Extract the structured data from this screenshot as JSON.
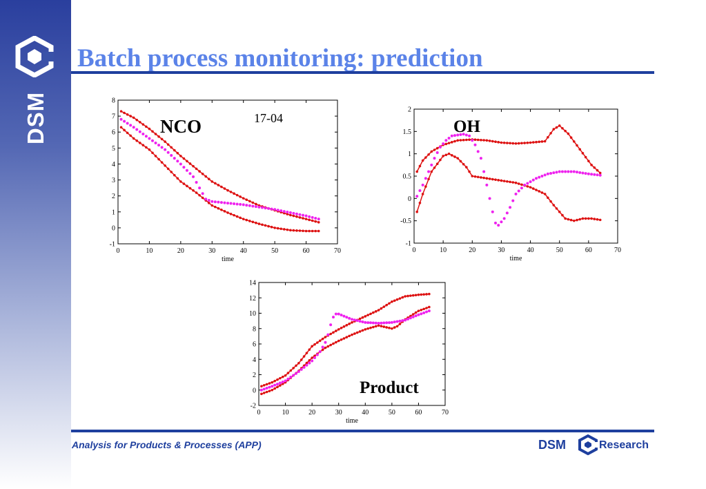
{
  "slide": {
    "title": "Batch process monitoring: prediction",
    "sidebar_logo_text": "DSM",
    "footer_text": "Analysis for Products & Processes (APP)",
    "footer_brand": "DSM",
    "footer_research": "Research",
    "colors": {
      "brand_blue": "#1e3f9e",
      "title_blue": "#5b83e8",
      "limit_red": "#dd1111",
      "prediction_magenta": "#ee22ee"
    }
  },
  "chart_data": [
    {
      "type": "scatter",
      "label": "NCO",
      "annotation": "17-04",
      "xlabel": "time",
      "ylabel": "",
      "xlim": [
        0,
        70
      ],
      "ylim": [
        -1,
        8
      ],
      "xticks": [
        0,
        10,
        20,
        30,
        40,
        50,
        60,
        70
      ],
      "yticks": [
        -1,
        0,
        1,
        2,
        3,
        4,
        5,
        6,
        7,
        8
      ],
      "series": [
        {
          "role": "upper-limit",
          "color": "#dd1111",
          "markers": "line-dot",
          "points": [
            [
              1,
              7.3
            ],
            [
              5,
              6.9
            ],
            [
              10,
              6.2
            ],
            [
              15,
              5.4
            ],
            [
              20,
              4.5
            ],
            [
              25,
              3.7
            ],
            [
              30,
              2.9
            ],
            [
              35,
              2.35
            ],
            [
              40,
              1.85
            ],
            [
              45,
              1.4
            ],
            [
              50,
              1.1
            ],
            [
              55,
              0.8
            ],
            [
              60,
              0.55
            ],
            [
              64,
              0.35
            ]
          ]
        },
        {
          "role": "lower-limit",
          "color": "#dd1111",
          "markers": "line-dot",
          "points": [
            [
              1,
              6.3
            ],
            [
              5,
              5.6
            ],
            [
              10,
              4.9
            ],
            [
              15,
              3.9
            ],
            [
              20,
              2.9
            ],
            [
              25,
              2.2
            ],
            [
              30,
              1.4
            ],
            [
              35,
              0.95
            ],
            [
              40,
              0.55
            ],
            [
              45,
              0.25
            ],
            [
              50,
              0.0
            ],
            [
              55,
              -0.15
            ],
            [
              60,
              -0.2
            ],
            [
              64,
              -0.2
            ]
          ]
        },
        {
          "role": "prediction",
          "color": "#ee22ee",
          "markers": "dots",
          "points": [
            [
              1,
              6.8
            ],
            [
              5,
              6.3
            ],
            [
              10,
              5.6
            ],
            [
              15,
              4.9
            ],
            [
              20,
              4.0
            ],
            [
              24,
              3.2
            ],
            [
              26,
              2.5
            ],
            [
              28,
              1.8
            ],
            [
              30,
              1.65
            ],
            [
              35,
              1.55
            ],
            [
              40,
              1.45
            ],
            [
              45,
              1.3
            ],
            [
              50,
              1.15
            ],
            [
              55,
              0.95
            ],
            [
              60,
              0.75
            ],
            [
              64,
              0.55
            ]
          ]
        }
      ]
    },
    {
      "type": "scatter",
      "label": "OH",
      "xlabel": "time",
      "ylabel": "",
      "xlim": [
        0,
        70
      ],
      "ylim": [
        -1,
        2
      ],
      "xticks": [
        0,
        10,
        20,
        30,
        40,
        50,
        60,
        70
      ],
      "yticks": [
        -1,
        -0.5,
        0,
        0.5,
        1,
        1.5,
        2
      ],
      "series": [
        {
          "role": "upper-limit",
          "color": "#dd1111",
          "markers": "line-dot",
          "points": [
            [
              1,
              0.6
            ],
            [
              3,
              0.85
            ],
            [
              6,
              1.05
            ],
            [
              10,
              1.2
            ],
            [
              15,
              1.3
            ],
            [
              20,
              1.32
            ],
            [
              25,
              1.3
            ],
            [
              30,
              1.25
            ],
            [
              35,
              1.23
            ],
            [
              40,
              1.25
            ],
            [
              45,
              1.28
            ],
            [
              48,
              1.55
            ],
            [
              50,
              1.63
            ],
            [
              53,
              1.45
            ],
            [
              57,
              1.1
            ],
            [
              61,
              0.75
            ],
            [
              64,
              0.57
            ]
          ]
        },
        {
          "role": "lower-limit",
          "color": "#dd1111",
          "markers": "line-dot",
          "points": [
            [
              1,
              -0.3
            ],
            [
              3,
              0.1
            ],
            [
              6,
              0.6
            ],
            [
              10,
              0.95
            ],
            [
              12,
              1.0
            ],
            [
              15,
              0.9
            ],
            [
              18,
              0.7
            ],
            [
              20,
              0.5
            ],
            [
              25,
              0.45
            ],
            [
              30,
              0.4
            ],
            [
              35,
              0.35
            ],
            [
              40,
              0.25
            ],
            [
              45,
              0.1
            ],
            [
              48,
              -0.15
            ],
            [
              52,
              -0.45
            ],
            [
              55,
              -0.5
            ],
            [
              58,
              -0.45
            ],
            [
              61,
              -0.45
            ],
            [
              64,
              -0.48
            ]
          ]
        },
        {
          "role": "prediction",
          "color": "#ee22ee",
          "markers": "dots",
          "points": [
            [
              1,
              0.05
            ],
            [
              3,
              0.3
            ],
            [
              5,
              0.6
            ],
            [
              7,
              0.9
            ],
            [
              9,
              1.15
            ],
            [
              11,
              1.3
            ],
            [
              13,
              1.4
            ],
            [
              15,
              1.42
            ],
            [
              17,
              1.44
            ],
            [
              19,
              1.4
            ],
            [
              21,
              1.2
            ],
            [
              23,
              0.9
            ],
            [
              25,
              0.3
            ],
            [
              27,
              -0.3
            ],
            [
              28,
              -0.55
            ],
            [
              29,
              -0.6
            ],
            [
              31,
              -0.45
            ],
            [
              33,
              -0.2
            ],
            [
              35,
              0.1
            ],
            [
              38,
              0.3
            ],
            [
              42,
              0.45
            ],
            [
              46,
              0.55
            ],
            [
              50,
              0.6
            ],
            [
              55,
              0.6
            ],
            [
              60,
              0.55
            ],
            [
              64,
              0.52
            ]
          ]
        }
      ]
    },
    {
      "type": "scatter",
      "label": "Product",
      "xlabel": "time",
      "ylabel": "",
      "xlim": [
        0,
        70
      ],
      "ylim": [
        -2,
        14
      ],
      "xticks": [
        0,
        10,
        20,
        30,
        40,
        50,
        60,
        70
      ],
      "yticks": [
        -2,
        0,
        2,
        4,
        6,
        8,
        10,
        12,
        14
      ],
      "series": [
        {
          "role": "upper-limit",
          "color": "#dd1111",
          "markers": "line-dot",
          "points": [
            [
              1,
              0.5
            ],
            [
              5,
              1.0
            ],
            [
              10,
              1.9
            ],
            [
              15,
              3.5
            ],
            [
              20,
              5.7
            ],
            [
              25,
              6.9
            ],
            [
              30,
              7.9
            ],
            [
              35,
              8.8
            ],
            [
              40,
              9.6
            ],
            [
              45,
              10.4
            ],
            [
              50,
              11.5
            ],
            [
              55,
              12.2
            ],
            [
              60,
              12.4
            ],
            [
              64,
              12.5
            ]
          ]
        },
        {
          "role": "lower-limit",
          "color": "#dd1111",
          "markers": "line-dot",
          "points": [
            [
              1,
              -0.5
            ],
            [
              5,
              0.0
            ],
            [
              10,
              1.0
            ],
            [
              15,
              2.5
            ],
            [
              20,
              4.2
            ],
            [
              25,
              5.5
            ],
            [
              30,
              6.4
            ],
            [
              35,
              7.2
            ],
            [
              40,
              7.9
            ],
            [
              45,
              8.4
            ],
            [
              50,
              8.0
            ],
            [
              52,
              8.3
            ],
            [
              55,
              9.2
            ],
            [
              60,
              10.3
            ],
            [
              64,
              10.8
            ]
          ]
        },
        {
          "role": "prediction",
          "color": "#ee22ee",
          "markers": "dots",
          "points": [
            [
              1,
              0.0
            ],
            [
              5,
              0.5
            ],
            [
              10,
              1.2
            ],
            [
              15,
              2.4
            ],
            [
              20,
              3.8
            ],
            [
              23,
              5.0
            ],
            [
              25,
              6.2
            ],
            [
              26,
              7.2
            ],
            [
              27,
              8.5
            ],
            [
              28,
              9.5
            ],
            [
              29,
              9.9
            ],
            [
              30,
              9.9
            ],
            [
              35,
              9.2
            ],
            [
              40,
              8.8
            ],
            [
              45,
              8.7
            ],
            [
              50,
              8.8
            ],
            [
              55,
              9.1
            ],
            [
              60,
              9.8
            ],
            [
              64,
              10.3
            ]
          ]
        }
      ]
    }
  ]
}
